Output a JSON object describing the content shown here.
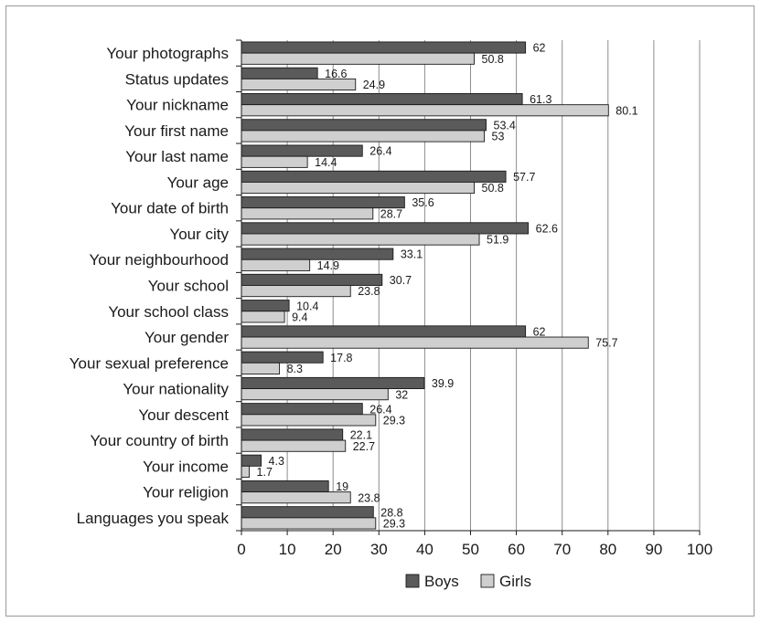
{
  "chart_data": {
    "type": "bar",
    "orientation": "horizontal",
    "categories": [
      "Your photographs",
      "Status updates",
      "Your nickname",
      "Your first name",
      "Your last name",
      "Your age",
      "Your date of birth",
      "Your city",
      "Your neighbourhood",
      "Your school",
      "Your school class",
      "Your gender",
      "Your sexual preference",
      "Your nationality",
      "Your descent",
      "Your country of birth",
      "Your income",
      "Your religion",
      "Languages you speak"
    ],
    "series": [
      {
        "name": "Boys",
        "color": "#5a5a5a",
        "values": [
          62,
          16.6,
          61.3,
          53.4,
          26.4,
          57.7,
          35.6,
          62.6,
          33.1,
          30.7,
          10.4,
          62,
          17.8,
          39.9,
          26.4,
          22.1,
          4.3,
          19,
          28.8
        ]
      },
      {
        "name": "Girls",
        "color": "#cfcfcf",
        "values": [
          50.8,
          24.9,
          80.1,
          53,
          14.4,
          50.8,
          28.7,
          51.9,
          14.9,
          23.8,
          9.4,
          75.7,
          8.3,
          32,
          29.3,
          22.7,
          1.7,
          23.8,
          29.3
        ]
      }
    ],
    "xlim": [
      0,
      100
    ],
    "xticks": [
      "0",
      "10",
      "20",
      "30",
      "40",
      "50",
      "60",
      "70",
      "80",
      "90",
      "100"
    ],
    "grid": "vertical",
    "legend_position": "bottom",
    "title": "",
    "xlabel": "",
    "ylabel": ""
  }
}
